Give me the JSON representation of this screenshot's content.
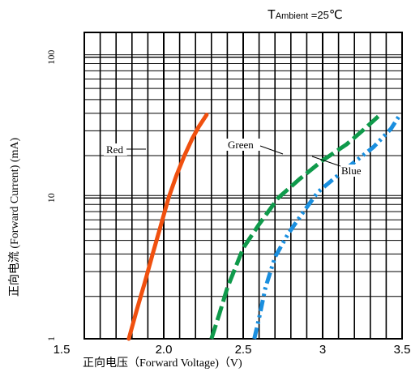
{
  "chart_data": {
    "type": "line",
    "annotation": {
      "t": "T",
      "sub": "Ambient",
      "value": " =25",
      "unit": "℃"
    },
    "xlabel": "正向电压（Forward Voltage)（V)",
    "ylabel": "正向电流 (Forward Current) (mA)",
    "xlim": [
      1.5,
      3.5
    ],
    "ylim": [
      1,
      150
    ],
    "yscale": "log",
    "x_ticks": [
      "1.5",
      "2.0",
      "2.5",
      "3",
      "3.5"
    ],
    "y_ticks": [
      "1",
      "10",
      "100"
    ],
    "grid": true,
    "series": [
      {
        "name": "Red",
        "color": "#f0500f",
        "dash": "solid",
        "x": [
          1.78,
          1.83,
          1.88,
          1.93,
          1.98,
          2.03,
          2.08,
          2.13,
          2.18,
          2.22,
          2.27
        ],
        "y": [
          1,
          1.6,
          2.5,
          4.0,
          6.3,
          10,
          14.5,
          20,
          26.5,
          32,
          39
        ]
      },
      {
        "name": "Green",
        "color": "#0f9a4b",
        "dash": "dashed",
        "x": [
          2.3,
          2.35,
          2.4,
          2.5,
          2.6,
          2.72,
          2.85,
          3.0,
          3.15,
          3.25,
          3.35
        ],
        "y": [
          1,
          1.5,
          2.3,
          4.4,
          6.5,
          10,
          13.5,
          18.5,
          24,
          30,
          38
        ]
      },
      {
        "name": "Blue",
        "color": "#1a8fdf",
        "dash": "dash-dot-dot",
        "x": [
          2.57,
          2.6,
          2.64,
          2.7,
          2.78,
          2.88,
          2.97,
          3.08,
          3.2,
          3.32,
          3.43,
          3.48
        ],
        "y": [
          1,
          1.4,
          2.3,
          3.8,
          5.5,
          8.0,
          11,
          14,
          18,
          23,
          31,
          38
        ]
      }
    ],
    "labels": {
      "red": "Red",
      "green": "Green",
      "blue": "Blue"
    }
  }
}
